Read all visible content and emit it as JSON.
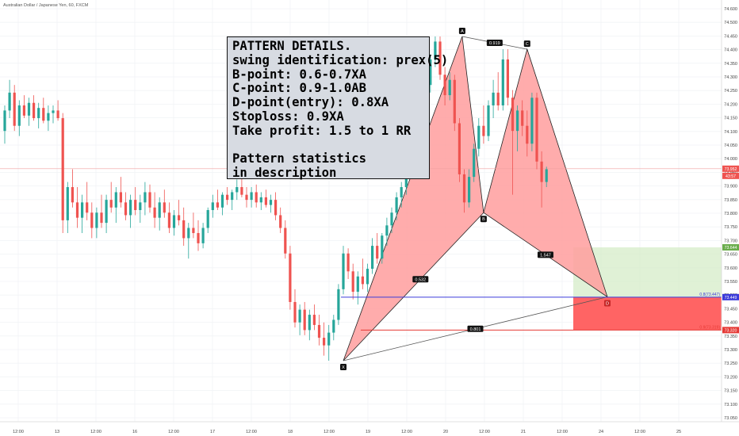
{
  "header": {
    "symbol": "Australian Dollar / Japanese Yen, 60, FXCM"
  },
  "info_box": {
    "lines": [
      "PATTERN DETAILS.",
      "swing identification: prex(5)",
      "B-point: 0.6-0.7XA",
      "C-point: 0.9-1.0AB",
      "D-point(entry): 0.8XA",
      "Stoploss: 0.9XA",
      "Take profit: 1.5 to 1 RR"
    ],
    "stat_lines": [
      "Pattern statistics",
      "in description"
    ]
  },
  "colors": {
    "up": "#26a69a",
    "down": "#ef5350",
    "pattern_fill": "#ff9e9e",
    "target_zone": "#d6ecc8",
    "stop_zone": "#ff5c5c",
    "entry_line": "#3b3bd9",
    "stop_line": "#e53935",
    "current_price_line": "#f0a0a0"
  },
  "chart_data": {
    "type": "candlestick",
    "instrument": "Australian Dollar / Japanese Yen",
    "timeframe": "60",
    "source": "FXCM",
    "ylim": [
      73.02,
      74.56
    ],
    "y_ticks": [
      "74.600",
      "74.500",
      "74.450",
      "74.400",
      "74.350",
      "74.300",
      "74.250",
      "74.200",
      "74.150",
      "74.100",
      "74.050",
      "74.000",
      "73.950",
      "73.900",
      "73.850",
      "73.800",
      "73.750",
      "73.700",
      "73.650",
      "73.600",
      "73.550",
      "73.500",
      "73.450",
      "73.400",
      "73.350",
      "73.300",
      "73.250",
      "73.200",
      "73.150",
      "73.100",
      "73.050"
    ],
    "x_ticks": [
      "12:00",
      "13",
      "12:00",
      "16",
      "12:00",
      "17",
      "12:00",
      "18",
      "12:00",
      "19",
      "12:00",
      "20",
      "12:00",
      "21",
      "12:00",
      "24",
      "12:00",
      "25"
    ],
    "pattern_points": [
      {
        "label": "X",
        "price": 73.2
      },
      {
        "label": "A",
        "price": 74.47
      },
      {
        "label": "B",
        "price": 73.78
      },
      {
        "label": "C",
        "price": 74.42
      },
      {
        "label": "D",
        "price": 73.45
      }
    ],
    "ratio_labels": [
      "0.532",
      "0.919",
      "1.547",
      "0.801"
    ],
    "price_levels": [
      {
        "name": "entry",
        "price_label": "73.449",
        "side_label": "0.8(73.447)"
      },
      {
        "name": "stoploss",
        "price_label": "73.320",
        "side_label": "0.9(73.319)"
      },
      {
        "name": "target",
        "price_label": "73.644"
      }
    ],
    "current_price": {
      "price_label": "73.952",
      "countdown": "43:57"
    },
    "candles": [
      [
        74.1,
        74.2,
        74.05,
        74.18
      ],
      [
        74.18,
        74.3,
        74.15,
        74.25
      ],
      [
        74.25,
        74.28,
        74.1,
        74.12
      ],
      [
        74.12,
        74.22,
        74.08,
        74.2
      ],
      [
        74.2,
        74.24,
        74.15,
        74.16
      ],
      [
        74.16,
        74.23,
        74.12,
        74.21
      ],
      [
        74.21,
        74.24,
        74.14,
        74.15
      ],
      [
        74.15,
        74.21,
        74.11,
        74.19
      ],
      [
        74.19,
        74.23,
        74.13,
        74.14
      ],
      [
        74.14,
        74.2,
        74.1,
        74.17
      ],
      [
        74.17,
        74.2,
        74.13,
        74.18
      ],
      [
        74.18,
        74.22,
        74.14,
        74.15
      ],
      [
        74.15,
        74.17,
        73.7,
        73.75
      ],
      [
        73.75,
        73.9,
        73.7,
        73.88
      ],
      [
        73.88,
        73.95,
        73.8,
        73.82
      ],
      [
        73.82,
        73.88,
        73.72,
        73.76
      ],
      [
        73.76,
        73.85,
        73.7,
        73.82
      ],
      [
        73.82,
        73.9,
        73.75,
        73.78
      ],
      [
        73.78,
        73.82,
        73.68,
        73.72
      ],
      [
        73.72,
        73.8,
        73.68,
        73.78
      ],
      [
        73.78,
        73.85,
        73.72,
        73.74
      ],
      [
        73.74,
        73.85,
        73.7,
        73.83
      ],
      [
        73.83,
        73.9,
        73.78,
        73.8
      ],
      [
        73.8,
        73.88,
        73.74,
        73.86
      ],
      [
        73.86,
        73.92,
        73.8,
        73.82
      ],
      [
        73.82,
        73.86,
        73.75,
        73.77
      ],
      [
        73.77,
        73.85,
        73.72,
        73.83
      ],
      [
        73.83,
        73.88,
        73.77,
        73.79
      ],
      [
        73.79,
        73.85,
        73.74,
        73.82
      ],
      [
        73.82,
        73.9,
        73.77,
        73.86
      ],
      [
        73.86,
        73.89,
        73.78,
        73.8
      ],
      [
        73.8,
        73.86,
        73.72,
        73.76
      ],
      [
        73.76,
        73.84,
        73.71,
        73.82
      ],
      [
        73.82,
        73.87,
        73.76,
        73.78
      ],
      [
        73.78,
        73.82,
        73.7,
        73.72
      ],
      [
        73.72,
        73.79,
        73.69,
        73.77
      ],
      [
        73.77,
        73.83,
        73.73,
        73.75
      ],
      [
        73.75,
        73.8,
        73.65,
        73.68
      ],
      [
        73.68,
        73.74,
        73.6,
        73.72
      ],
      [
        73.72,
        73.78,
        73.68,
        73.7
      ],
      [
        73.7,
        73.75,
        73.63,
        73.66
      ],
      [
        73.66,
        73.74,
        73.64,
        73.72
      ],
      [
        73.72,
        73.8,
        73.7,
        73.79
      ],
      [
        73.79,
        73.85,
        73.76,
        73.82
      ],
      [
        73.82,
        73.87,
        73.79,
        73.8
      ],
      [
        73.8,
        73.86,
        73.77,
        73.85
      ],
      [
        73.85,
        73.88,
        73.81,
        73.83
      ],
      [
        73.83,
        73.87,
        73.79,
        73.86
      ],
      [
        73.86,
        73.91,
        73.83,
        73.88
      ],
      [
        73.88,
        73.92,
        73.84,
        73.85
      ],
      [
        73.85,
        73.88,
        73.8,
        73.83
      ],
      [
        73.83,
        73.88,
        73.8,
        73.86
      ],
      [
        73.86,
        73.89,
        73.8,
        73.82
      ],
      [
        73.82,
        73.86,
        73.79,
        73.84
      ],
      [
        73.84,
        73.87,
        73.8,
        73.81
      ],
      [
        73.81,
        73.85,
        73.78,
        73.83
      ],
      [
        73.83,
        73.86,
        73.75,
        73.77
      ],
      [
        73.77,
        73.8,
        73.7,
        73.72
      ],
      [
        73.72,
        73.75,
        73.6,
        73.62
      ],
      [
        73.62,
        73.65,
        73.4,
        73.43
      ],
      [
        73.43,
        73.48,
        73.33,
        73.35
      ],
      [
        73.35,
        73.42,
        73.3,
        73.4
      ],
      [
        73.4,
        73.43,
        73.3,
        73.32
      ],
      [
        73.32,
        73.4,
        73.28,
        73.38
      ],
      [
        73.38,
        73.42,
        73.32,
        73.34
      ],
      [
        73.34,
        73.38,
        73.26,
        73.29
      ],
      [
        73.29,
        73.35,
        73.22,
        73.26
      ],
      [
        73.26,
        73.34,
        73.2,
        73.31
      ],
      [
        73.31,
        73.38,
        73.28,
        73.36
      ],
      [
        73.36,
        73.5,
        73.34,
        73.48
      ],
      [
        73.48,
        73.65,
        73.46,
        73.62
      ],
      [
        73.62,
        73.64,
        73.52,
        73.55
      ],
      [
        73.55,
        73.58,
        73.44,
        73.47
      ],
      [
        73.47,
        73.55,
        73.42,
        73.53
      ],
      [
        73.53,
        73.6,
        73.48,
        73.5
      ],
      [
        73.5,
        73.58,
        73.47,
        73.56
      ],
      [
        73.56,
        73.68,
        73.54,
        73.65
      ],
      [
        73.65,
        73.7,
        73.58,
        73.6
      ],
      [
        73.6,
        73.7,
        73.58,
        73.69
      ],
      [
        73.69,
        73.76,
        73.65,
        73.73
      ],
      [
        73.73,
        73.8,
        73.7,
        73.78
      ],
      [
        73.78,
        73.86,
        73.75,
        73.84
      ],
      [
        73.84,
        73.9,
        73.8,
        73.88
      ],
      [
        73.88,
        73.96,
        73.85,
        73.94
      ],
      [
        73.94,
        74.05,
        73.92,
        74.03
      ],
      [
        74.03,
        74.12,
        74.0,
        74.1
      ],
      [
        74.1,
        74.2,
        74.08,
        74.18
      ],
      [
        74.18,
        74.3,
        74.15,
        74.28
      ],
      [
        74.28,
        74.4,
        74.25,
        74.38
      ],
      [
        74.38,
        74.47,
        74.35,
        74.45
      ],
      [
        74.45,
        74.47,
        74.3,
        74.32
      ],
      [
        74.32,
        74.35,
        74.2,
        74.24
      ],
      [
        74.24,
        74.33,
        74.22,
        74.3
      ],
      [
        74.3,
        74.32,
        74.1,
        74.13
      ],
      [
        74.13,
        74.15,
        73.9,
        73.93
      ],
      [
        73.93,
        73.95,
        73.78,
        73.82
      ],
      [
        73.82,
        73.95,
        73.8,
        73.92
      ],
      [
        73.92,
        74.05,
        73.9,
        74.03
      ],
      [
        74.03,
        74.15,
        74.0,
        74.12
      ],
      [
        74.12,
        74.2,
        74.05,
        74.08
      ],
      [
        74.08,
        74.22,
        74.06,
        74.2
      ],
      [
        74.2,
        74.3,
        74.15,
        74.25
      ],
      [
        74.25,
        74.33,
        74.18,
        74.2
      ],
      [
        74.2,
        74.42,
        74.18,
        74.38
      ],
      [
        74.38,
        74.42,
        74.2,
        74.23
      ],
      [
        74.23,
        74.26,
        73.85,
        74.1
      ],
      [
        74.1,
        74.2,
        74.02,
        74.18
      ],
      [
        74.18,
        74.22,
        74.08,
        74.12
      ],
      [
        74.12,
        74.18,
        74.0,
        74.05
      ],
      [
        74.05,
        74.25,
        74.02,
        74.23
      ],
      [
        74.23,
        74.25,
        73.95,
        73.98
      ],
      [
        73.98,
        74.02,
        73.8,
        73.9
      ],
      [
        73.9,
        73.96,
        73.88,
        73.95
      ]
    ]
  }
}
